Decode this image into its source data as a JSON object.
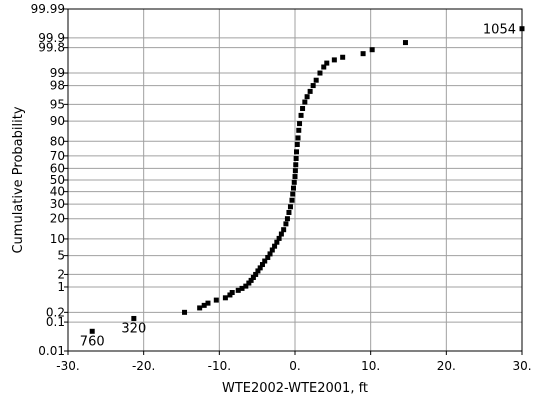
{
  "chart_data": {
    "type": "scatter",
    "title": "",
    "xlabel": "WTE2002-WTE2001, ft",
    "ylabel": "Cumulative Probability",
    "x_scale": "linear",
    "y_scale": "normal-probability",
    "xlim": [
      -30,
      30
    ],
    "ylim": [
      0.01,
      99.99
    ],
    "grid": true,
    "x_ticks": [
      -30,
      -20,
      -10,
      0,
      10,
      20,
      30
    ],
    "x_tick_labels": [
      "-30.",
      "-20.",
      "-10.",
      "0.",
      "10.",
      "20.",
      "30."
    ],
    "y_ticks": [
      0.01,
      0.1,
      0.2,
      1,
      2,
      5,
      10,
      20,
      30,
      40,
      50,
      60,
      70,
      80,
      90,
      95,
      98,
      99,
      99.8,
      99.9,
      99.99
    ],
    "y_tick_labels": [
      "0.01",
      "0.1",
      "0.2",
      "1",
      "2",
      "5",
      "10",
      "20",
      "30",
      "40",
      "50",
      "60",
      "70",
      "80",
      "90",
      "95",
      "98",
      "99",
      "99.8",
      "99.9",
      "99.99"
    ],
    "point_labels": [
      {
        "text": "760",
        "x": -26.8,
        "y": 0.05
      },
      {
        "text": "320",
        "x": -21.3,
        "y": 0.13
      },
      {
        "text": "1054",
        "x": 30.0,
        "y": 99.95
      }
    ],
    "series": [
      {
        "points": [
          [
            -26.8,
            0.05
          ],
          [
            -21.3,
            0.13
          ],
          [
            -14.6,
            0.2
          ],
          [
            -12.6,
            0.27
          ],
          [
            -12.0,
            0.32
          ],
          [
            -11.5,
            0.37
          ],
          [
            -10.4,
            0.45
          ],
          [
            -9.2,
            0.52
          ],
          [
            -8.6,
            0.62
          ],
          [
            -8.3,
            0.72
          ],
          [
            -7.5,
            0.82
          ],
          [
            -7.0,
            0.92
          ],
          [
            -6.5,
            1.05
          ],
          [
            -6.1,
            1.25
          ],
          [
            -5.8,
            1.45
          ],
          [
            -5.5,
            1.7
          ],
          [
            -5.2,
            2.0
          ],
          [
            -4.9,
            2.4
          ],
          [
            -4.6,
            2.8
          ],
          [
            -4.3,
            3.3
          ],
          [
            -4.0,
            3.9
          ],
          [
            -3.6,
            4.6
          ],
          [
            -3.3,
            5.4
          ],
          [
            -3.0,
            6.4
          ],
          [
            -2.7,
            7.5
          ],
          [
            -2.4,
            8.8
          ],
          [
            -2.1,
            10.2
          ],
          [
            -1.8,
            12
          ],
          [
            -1.5,
            14
          ],
          [
            -1.2,
            17
          ],
          [
            -1.0,
            20
          ],
          [
            -0.8,
            24
          ],
          [
            -0.6,
            28
          ],
          [
            -0.4,
            33
          ],
          [
            -0.3,
            38
          ],
          [
            -0.2,
            43
          ],
          [
            -0.1,
            48
          ],
          [
            0.0,
            53
          ],
          [
            0.05,
            58
          ],
          [
            0.1,
            63
          ],
          [
            0.15,
            68
          ],
          [
            0.2,
            73
          ],
          [
            0.3,
            78
          ],
          [
            0.4,
            82
          ],
          [
            0.5,
            86
          ],
          [
            0.6,
            89
          ],
          [
            0.8,
            92
          ],
          [
            1.0,
            94
          ],
          [
            1.3,
            95.5
          ],
          [
            1.6,
            96.5
          ],
          [
            2.0,
            97.3
          ],
          [
            2.4,
            98.0
          ],
          [
            2.8,
            98.5
          ],
          [
            3.3,
            99.0
          ],
          [
            3.8,
            99.3
          ],
          [
            4.2,
            99.45
          ],
          [
            5.2,
            99.55
          ],
          [
            6.3,
            99.62
          ],
          [
            9.0,
            99.7
          ],
          [
            10.2,
            99.77
          ],
          [
            14.6,
            99.86
          ],
          [
            30.0,
            99.95
          ]
        ]
      }
    ]
  }
}
